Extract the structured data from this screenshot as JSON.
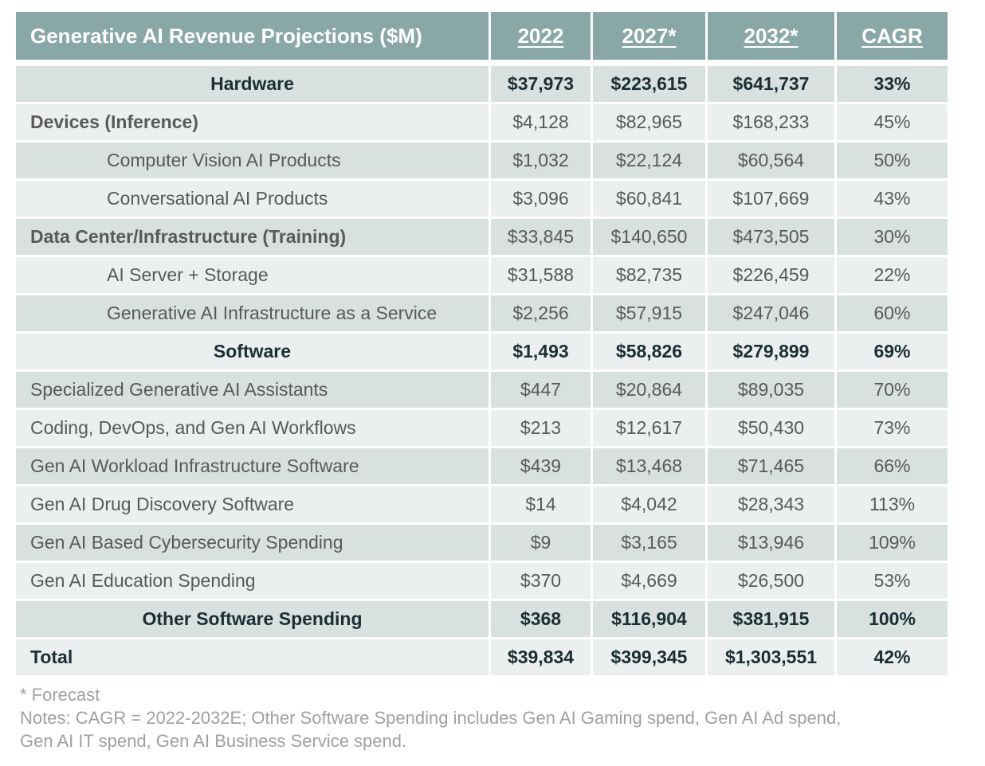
{
  "table": {
    "title": "Generative AI Revenue Projections ($M)",
    "columns": [
      "2022",
      "2027*",
      "2032*",
      "CAGR"
    ],
    "rows": [
      {
        "label": "Hardware",
        "type": "section",
        "values": [
          "$37,973",
          "$223,615",
          "$641,737",
          "33%"
        ]
      },
      {
        "label": "Devices (Inference)",
        "type": "group",
        "values": [
          "$4,128",
          "$82,965",
          "$168,233",
          "45%"
        ]
      },
      {
        "label": "Computer Vision AI Products",
        "type": "sub",
        "values": [
          "$1,032",
          "$22,124",
          "$60,564",
          "50%"
        ]
      },
      {
        "label": "Conversational AI Products",
        "type": "sub",
        "values": [
          "$3,096",
          "$60,841",
          "$107,669",
          "43%"
        ]
      },
      {
        "label": "Data Center/Infrastructure (Training)",
        "type": "group",
        "values": [
          "$33,845",
          "$140,650",
          "$473,505",
          "30%"
        ]
      },
      {
        "label": "AI Server + Storage",
        "type": "sub",
        "values": [
          "$31,588",
          "$82,735",
          "$226,459",
          "22%"
        ]
      },
      {
        "label": "Generative AI Infrastructure as a Service",
        "type": "sub",
        "values": [
          "$2,256",
          "$57,915",
          "$247,046",
          "60%"
        ]
      },
      {
        "label": "Software",
        "type": "section",
        "values": [
          "$1,493",
          "$58,826",
          "$279,899",
          "69%"
        ]
      },
      {
        "label": "Specialized Generative AI Assistants",
        "type": "item",
        "values": [
          "$447",
          "$20,864",
          "$89,035",
          "70%"
        ]
      },
      {
        "label": "Coding, DevOps, and Gen AI Workflows",
        "type": "item",
        "values": [
          "$213",
          "$12,617",
          "$50,430",
          "73%"
        ]
      },
      {
        "label": "Gen AI Workload Infrastructure Software",
        "type": "item",
        "values": [
          "$439",
          "$13,468",
          "$71,465",
          "66%"
        ]
      },
      {
        "label": "Gen AI Drug Discovery Software",
        "type": "item",
        "values": [
          "$14",
          "$4,042",
          "$28,343",
          "113%"
        ]
      },
      {
        "label": "Gen AI Based Cybersecurity Spending",
        "type": "item",
        "values": [
          "$9",
          "$3,165",
          "$13,946",
          "109%"
        ]
      },
      {
        "label": "Gen AI Education Spending",
        "type": "item",
        "values": [
          "$370",
          "$4,669",
          "$26,500",
          "53%"
        ]
      },
      {
        "label": "Other Software Spending",
        "type": "section",
        "values": [
          "$368",
          "$116,904",
          "$381,915",
          "100%"
        ]
      },
      {
        "label": "Total",
        "type": "total",
        "values": [
          "$39,834",
          "$399,345",
          "$1,303,551",
          "42%"
        ]
      }
    ]
  },
  "notes": {
    "forecast": "* Forecast",
    "line1": "Notes: CAGR = 2022-2032E; Other Software Spending includes Gen AI Gaming spend, Gen AI Ad spend,",
    "line2": "Gen AI IT spend, Gen AI Business Service spend."
  },
  "colors": {
    "header_bg": "#8aa7a7",
    "row_shade": "#d9e0e0",
    "row_light": "#ebeff0",
    "bold_text": "#1b2e33",
    "body_text": "#595959",
    "note_text": "#a0a0a0"
  }
}
